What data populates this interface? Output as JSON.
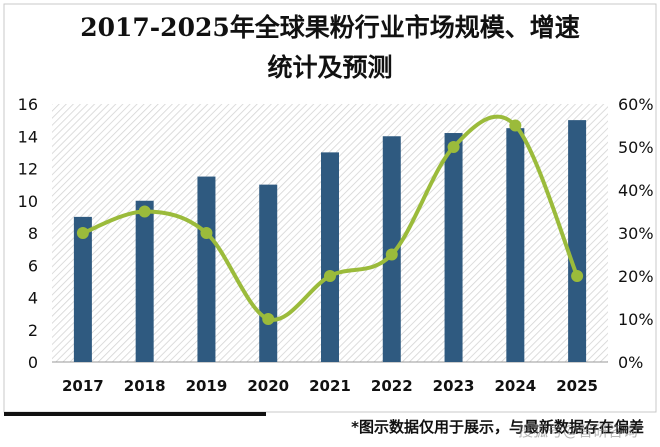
{
  "chart_data": {
    "type": "bar",
    "title_line1": "2017-2025年全球果粉行业市场规模、增速",
    "title_line2": "统计及预测",
    "categories": [
      "2017",
      "2018",
      "2019",
      "2020",
      "2021",
      "2022",
      "2023",
      "2024",
      "2025"
    ],
    "series": [
      {
        "type": "bar",
        "axis": "left",
        "values": [
          9,
          10,
          11.5,
          11,
          13,
          14,
          14.2,
          14.5,
          15
        ]
      },
      {
        "type": "line",
        "axis": "right",
        "values": [
          30,
          35,
          30,
          10,
          20,
          25,
          50,
          55,
          20
        ]
      }
    ],
    "y_left": {
      "min": 0,
      "max": 16,
      "step": 2
    },
    "y_right": {
      "min": 0,
      "max": 60,
      "step": 10,
      "suffix": "%"
    },
    "bar_color": "#2f5a80",
    "line_color": "#9bbb3b",
    "grid": false,
    "background_pattern": "diagonal-hatch"
  },
  "footer": {
    "note": "*图示数据仅用于展示，与最新数据存在偏差",
    "watermark": "搜狐号@智研咨询"
  }
}
